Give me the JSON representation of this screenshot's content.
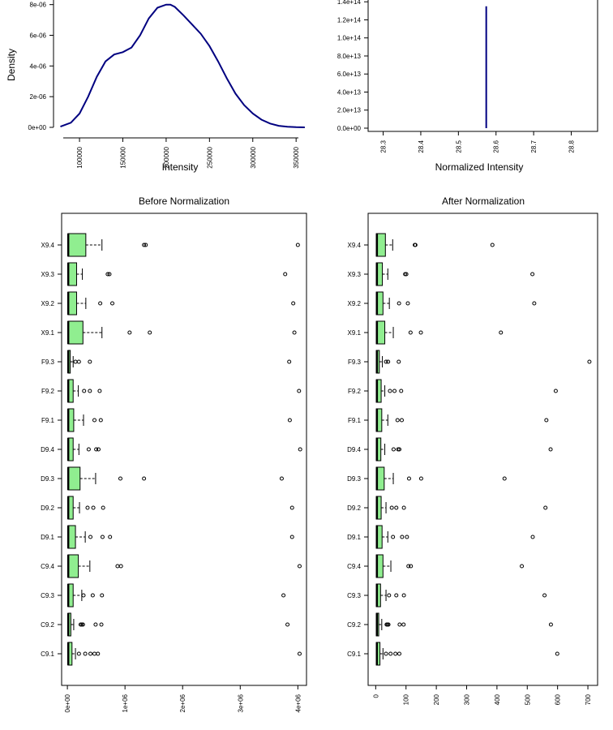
{
  "chart_data": [
    {
      "type": "line",
      "xlabel": "Intensity",
      "ylabel": "Density",
      "x_ticks": [
        "100000",
        "150000",
        "200000",
        "250000",
        "300000",
        "350000"
      ],
      "y_ticks": [
        "0e+00",
        "2e-06",
        "4e-06",
        "6e-06",
        "8e-06"
      ],
      "xlim": [
        70000,
        362000
      ],
      "ylim": [
        0,
        8.3e-06
      ],
      "series": [
        {
          "color": "#000080",
          "x": [
            78000,
            90000,
            100000,
            110000,
            120000,
            130000,
            140000,
            150000,
            160000,
            170000,
            180000,
            190000,
            200000,
            205000,
            210000,
            220000,
            230000,
            240000,
            250000,
            260000,
            270000,
            280000,
            290000,
            300000,
            310000,
            320000,
            330000,
            340000,
            350000,
            360000
          ],
          "y": [
            5e-08,
            3e-07,
            9e-07,
            2e-06,
            3.3e-06,
            4.3e-06,
            4.75e-06,
            4.9e-06,
            5.2e-06,
            6e-06,
            7.1e-06,
            7.8e-06,
            8e-06,
            8e-06,
            7.85e-06,
            7.3e-06,
            6.7e-06,
            6.1e-06,
            5.3e-06,
            4.3e-06,
            3.2e-06,
            2.2e-06,
            1.45e-06,
            9e-07,
            5e-07,
            2.5e-07,
            1e-07,
            4e-08,
            1e-08,
            0.0
          ]
        }
      ]
    },
    {
      "type": "line",
      "xlabel": "Normalized Intensity",
      "x_ticks": [
        "28.3",
        "28.4",
        "28.5",
        "28.6",
        "28.7",
        "28.8"
      ],
      "y_ticks": [
        "0.0e+00",
        "2.0e+13",
        "4.0e+13",
        "6.0e+13",
        "8.0e+13",
        "1.0e+14",
        "1.2e+14",
        "1.4e+14"
      ],
      "xlim": [
        28.26,
        28.87
      ],
      "ylim": [
        0,
        142000000000000.0
      ],
      "series": [
        {
          "color": "#000080",
          "x": [
            28.574,
            28.574
          ],
          "y": [
            0,
            135000000000000.0
          ]
        }
      ]
    },
    {
      "type": "box",
      "title": "Before Normalization",
      "x_ticks": [
        "0e+00",
        "1e+06",
        "2e+06",
        "3e+06",
        "4e+06"
      ],
      "xlim": [
        -100000,
        4150000
      ],
      "categories": [
        "X9.4",
        "X9.3",
        "X9.2",
        "X9.1",
        "F9.3",
        "F9.2",
        "F9.1",
        "D9.4",
        "D9.3",
        "D9.2",
        "D9.1",
        "C9.4",
        "C9.3",
        "C9.2",
        "C9.1"
      ],
      "boxes": [
        {
          "lw": 0,
          "q1": 10000,
          "med": 15000,
          "q3": 320000,
          "uw": 600000,
          "out": [
            1330000,
            1360000,
            4000000
          ]
        },
        {
          "lw": 0,
          "q1": 10000,
          "med": 15000,
          "q3": 160000,
          "uw": 260000,
          "out": [
            700000,
            730000,
            3780000
          ]
        },
        {
          "lw": 0,
          "q1": 10000,
          "med": 15000,
          "q3": 160000,
          "uw": 320000,
          "out": [
            570000,
            780000,
            3920000
          ]
        },
        {
          "lw": 0,
          "q1": 10000,
          "med": 15000,
          "q3": 270000,
          "uw": 600000,
          "out": [
            1080000,
            1430000,
            3940000
          ]
        },
        {
          "lw": 0,
          "q1": 10000,
          "med": 15000,
          "q3": 50000,
          "uw": 100000,
          "out": [
            140000,
            200000,
            390000,
            3850000
          ]
        },
        {
          "lw": 0,
          "q1": 10000,
          "med": 15000,
          "q3": 100000,
          "uw": 190000,
          "out": [
            290000,
            390000,
            560000,
            4020000
          ]
        },
        {
          "lw": 0,
          "q1": 10000,
          "med": 15000,
          "q3": 110000,
          "uw": 280000,
          "out": [
            470000,
            580000,
            3860000
          ]
        },
        {
          "lw": 0,
          "q1": 10000,
          "med": 15000,
          "q3": 100000,
          "uw": 200000,
          "out": [
            370000,
            500000,
            540000,
            4040000
          ]
        },
        {
          "lw": 0,
          "q1": 10000,
          "med": 15000,
          "q3": 220000,
          "uw": 490000,
          "out": [
            920000,
            1330000,
            3720000
          ]
        },
        {
          "lw": 0,
          "q1": 10000,
          "med": 15000,
          "q3": 100000,
          "uw": 210000,
          "out": [
            350000,
            450000,
            620000,
            3900000
          ]
        },
        {
          "lw": 0,
          "q1": 10000,
          "med": 15000,
          "q3": 140000,
          "uw": 310000,
          "out": [
            400000,
            610000,
            740000,
            3900000
          ]
        },
        {
          "lw": 0,
          "q1": 10000,
          "med": 15000,
          "q3": 190000,
          "uw": 390000,
          "out": [
            870000,
            930000,
            4030000
          ]
        },
        {
          "lw": 0,
          "q1": 10000,
          "med": 15000,
          "q3": 100000,
          "uw": 250000,
          "out": [
            280000,
            440000,
            600000,
            3750000
          ]
        },
        {
          "lw": 0,
          "q1": 10000,
          "med": 15000,
          "q3": 60000,
          "uw": 110000,
          "out": [
            230000,
            250000,
            270000,
            490000,
            590000,
            3820000
          ]
        },
        {
          "lw": 0,
          "q1": 10000,
          "med": 15000,
          "q3": 80000,
          "uw": 140000,
          "out": [
            200000,
            310000,
            400000,
            470000,
            530000,
            4030000
          ]
        }
      ]
    },
    {
      "type": "box",
      "title": "After Normalization",
      "x_ticks": [
        "0",
        "100",
        "200",
        "300",
        "400",
        "500",
        "600",
        "700"
      ],
      "xlim": [
        -25,
        732
      ],
      "categories": [
        "X9.4",
        "X9.3",
        "X9.2",
        "X9.1",
        "F9.3",
        "F9.2",
        "F9.1",
        "D9.4",
        "D9.3",
        "D9.2",
        "D9.1",
        "C9.4",
        "C9.3",
        "C9.2",
        "C9.1"
      ],
      "boxes": [
        {
          "lw": 0,
          "q1": 2,
          "med": 4,
          "q3": 32,
          "uw": 56,
          "out": [
            129,
            131,
            385
          ]
        },
        {
          "lw": 0,
          "q1": 2,
          "med": 4,
          "q3": 22,
          "uw": 40,
          "out": [
            97,
            101,
            517
          ]
        },
        {
          "lw": 0,
          "q1": 2,
          "med": 4,
          "q3": 24,
          "uw": 45,
          "out": [
            77,
            106,
            523
          ]
        },
        {
          "lw": 0,
          "q1": 2,
          "med": 4,
          "q3": 30,
          "uw": 58,
          "out": [
            115,
            149,
            413
          ]
        },
        {
          "lw": 0,
          "q1": 2,
          "med": 4,
          "q3": 12,
          "uw": 22,
          "out": [
            34,
            41,
            76,
            705
          ]
        },
        {
          "lw": 0,
          "q1": 2,
          "med": 4,
          "q3": 18,
          "uw": 30,
          "out": [
            47,
            62,
            84,
            594
          ]
        },
        {
          "lw": 0,
          "q1": 2,
          "med": 4,
          "q3": 20,
          "uw": 40,
          "out": [
            72,
            86,
            563
          ]
        },
        {
          "lw": 0,
          "q1": 2,
          "med": 4,
          "q3": 17,
          "uw": 30,
          "out": [
            59,
            74,
            78,
            577
          ]
        },
        {
          "lw": 0,
          "q1": 2,
          "med": 4,
          "q3": 28,
          "uw": 58,
          "out": [
            110,
            150,
            425
          ]
        },
        {
          "lw": 0,
          "q1": 2,
          "med": 4,
          "q3": 18,
          "uw": 34,
          "out": [
            53,
            68,
            93,
            560
          ]
        },
        {
          "lw": 0,
          "q1": 2,
          "med": 4,
          "q3": 21,
          "uw": 40,
          "out": [
            57,
            87,
            103,
            518
          ]
        },
        {
          "lw": 0,
          "q1": 2,
          "med": 4,
          "q3": 24,
          "uw": 50,
          "out": [
            108,
            116,
            482
          ]
        },
        {
          "lw": 0,
          "q1": 2,
          "med": 4,
          "q3": 16,
          "uw": 34,
          "out": [
            44,
            68,
            93,
            557
          ]
        },
        {
          "lw": 0,
          "q1": 2,
          "med": 4,
          "q3": 10,
          "uw": 20,
          "out": [
            36,
            39,
            42,
            79,
            92,
            578
          ]
        },
        {
          "lw": 0,
          "q1": 2,
          "med": 4,
          "q3": 14,
          "uw": 24,
          "out": [
            34,
            49,
            65,
            78,
            599
          ]
        }
      ]
    }
  ]
}
